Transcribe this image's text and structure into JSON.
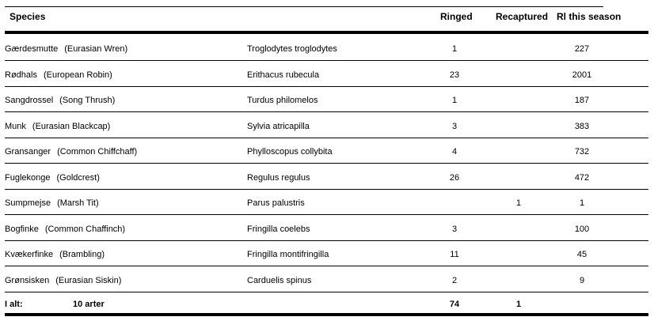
{
  "headers": {
    "species": "Species",
    "ringed": "Ringed",
    "recaptured": "Recaptured",
    "season": "Rl this season"
  },
  "rows": [
    {
      "common": "Gærdesmutte",
      "english": "(Eurasian Wren)",
      "latin": "Troglodytes troglodytes",
      "ringed": "1",
      "recaptured": "",
      "season": "227"
    },
    {
      "common": "Rødhals",
      "english": "(European Robin)",
      "latin": "Erithacus rubecula",
      "ringed": "23",
      "recaptured": "",
      "season": "2001"
    },
    {
      "common": "Sangdrossel",
      "english": "(Song Thrush)",
      "latin": "Turdus philomelos",
      "ringed": "1",
      "recaptured": "",
      "season": "187"
    },
    {
      "common": "Munk",
      "english": "(Eurasian Blackcap)",
      "latin": "Sylvia atricapilla",
      "ringed": "3",
      "recaptured": "",
      "season": "383"
    },
    {
      "common": "Gransanger",
      "english": "(Common Chiffchaff)",
      "latin": "Phylloscopus collybita",
      "ringed": "4",
      "recaptured": "",
      "season": "732"
    },
    {
      "common": "Fuglekonge",
      "english": "(Goldcrest)",
      "latin": "Regulus regulus",
      "ringed": "26",
      "recaptured": "",
      "season": "472"
    },
    {
      "common": "Sumpmejse",
      "english": "(Marsh Tit)",
      "latin": "Parus palustris",
      "ringed": "",
      "recaptured": "1",
      "season": "1"
    },
    {
      "common": "Bogfinke",
      "english": "(Common Chaffinch)",
      "latin": "Fringilla coelebs",
      "ringed": "3",
      "recaptured": "",
      "season": "100"
    },
    {
      "common": "Kvækerfinke",
      "english": "(Brambling)",
      "latin": "Fringilla montifringilla",
      "ringed": "11",
      "recaptured": "",
      "season": "45"
    },
    {
      "common": "Grønsisken",
      "english": "(Eurasian Siskin)",
      "latin": "Carduelis spinus",
      "ringed": "2",
      "recaptured": "",
      "season": "9"
    }
  ],
  "total": {
    "label": "I alt:",
    "count": "10 arter",
    "ringed": "74",
    "recaptured": "1"
  }
}
